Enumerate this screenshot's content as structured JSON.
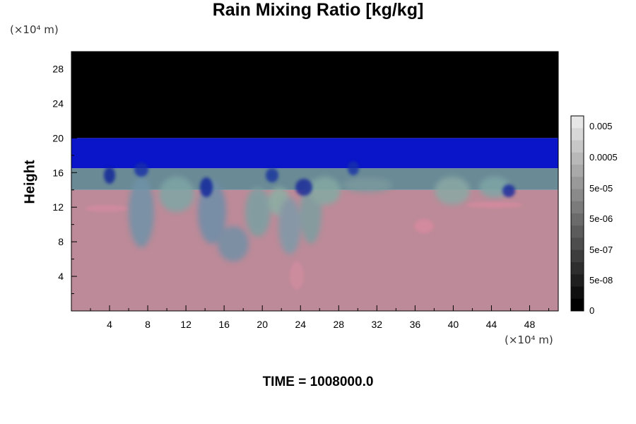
{
  "chart_data": {
    "type": "heatmap",
    "title": "Rain Mixing Ratio [kg/kg]",
    "ylabel": "Height",
    "xlabel": "",
    "y_unit_label": "(×10⁴ m)",
    "x_unit_label": "(×10⁴ m)",
    "xlim": [
      0,
      51
    ],
    "ylim": [
      0,
      30
    ],
    "x_ticks": [
      4,
      8,
      12,
      16,
      20,
      24,
      28,
      32,
      36,
      40,
      44,
      48
    ],
    "y_ticks": [
      4,
      8,
      12,
      16,
      20,
      24,
      28
    ],
    "colorbar": {
      "labels": [
        "0.005",
        "0.0005",
        "5e-05",
        "5e-06",
        "5e-07",
        "5e-08",
        "0"
      ],
      "levels": [
        "0",
        "5e-08",
        "5e-07",
        "5e-06",
        "5e-05",
        "0.0005",
        "0.005"
      ],
      "colormap": "grayscale"
    },
    "field_layers": [
      {
        "y_range": [
          20,
          30
        ],
        "color": "#000000"
      },
      {
        "y_range": [
          16.5,
          20
        ],
        "color": "#0a14c8"
      },
      {
        "y_range": [
          14,
          16.5
        ],
        "color": "#6a8a96"
      },
      {
        "y_range": [
          0,
          14
        ],
        "color": "#bc8a98"
      }
    ],
    "footer": "TIME = 1008000.0"
  }
}
